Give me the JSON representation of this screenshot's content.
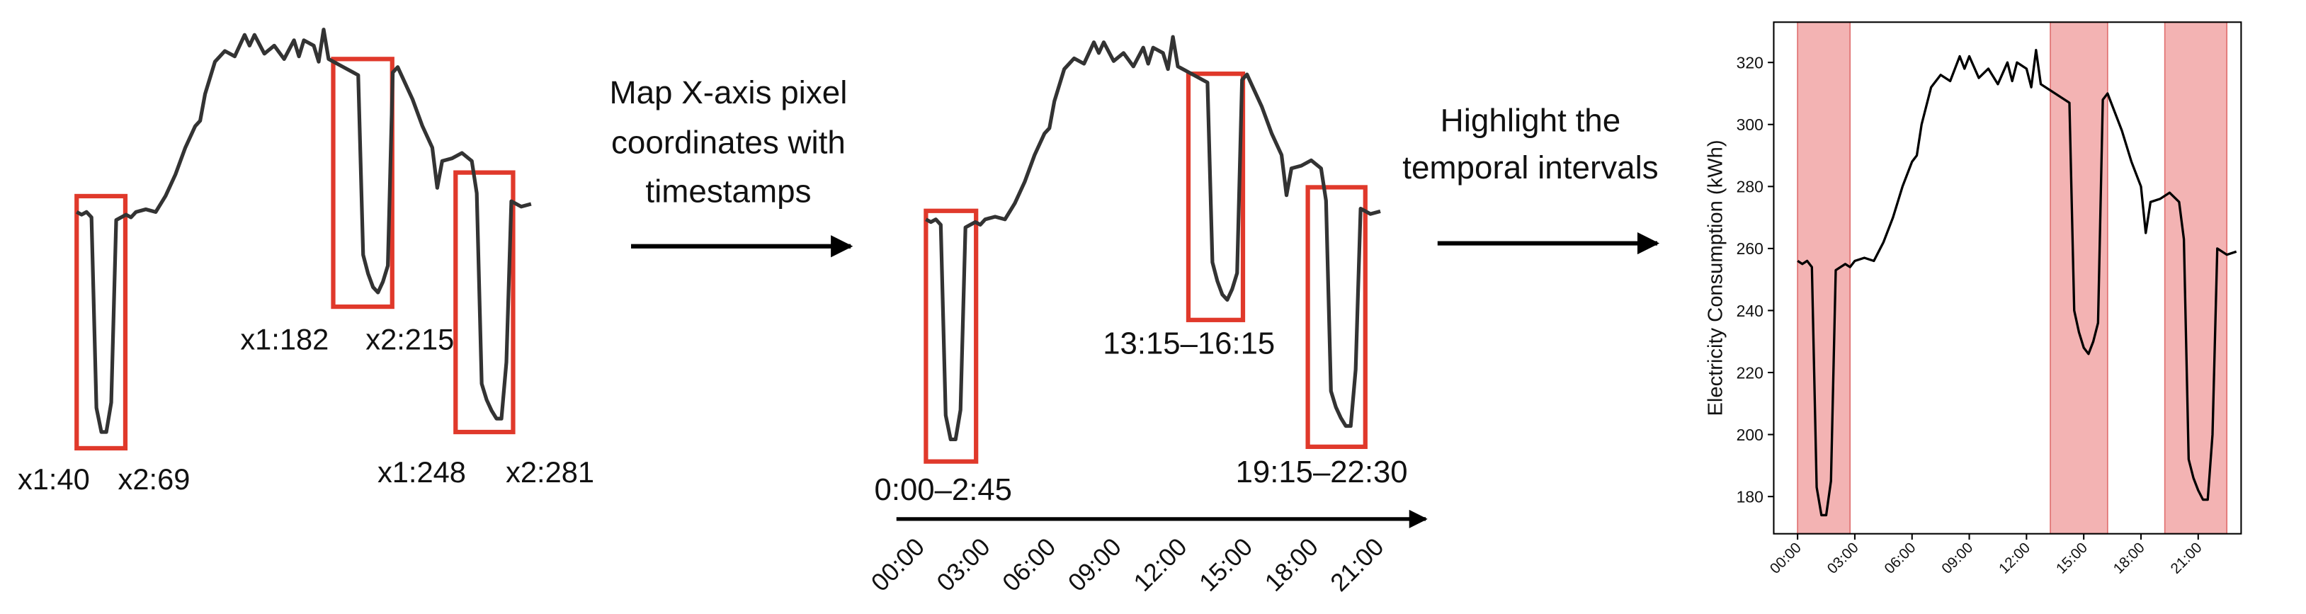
{
  "panel1": {
    "labels": [
      "x1:40",
      "x2:69",
      "x1:182",
      "x2:215",
      "x1:248",
      "x2:281"
    ]
  },
  "step1": {
    "lines": [
      "Map X-axis pixel",
      "coordinates with",
      "timestamps"
    ]
  },
  "panel2": {
    "labels": [
      "0:00–2:45",
      "13:15–16:15",
      "19:15–22:30"
    ],
    "ticks": [
      "00:00",
      "03:00",
      "06:00",
      "09:00",
      "12:00",
      "15:00",
      "18:00",
      "21:00"
    ]
  },
  "step2": {
    "lines": [
      "Highlight the",
      "temporal intervals"
    ]
  },
  "chart_data": {
    "type": "line",
    "y_label": "Electricity Consumption (kWh)",
    "x": [
      0,
      0.25,
      0.5,
      0.75,
      1,
      1.25,
      1.5,
      1.75,
      2,
      2.25,
      2.5,
      2.75,
      3,
      3.5,
      4,
      4.5,
      5,
      5.5,
      6,
      6.25,
      6.5,
      7,
      7.5,
      8,
      8.5,
      8.75,
      9,
      9.5,
      10,
      10.5,
      11,
      11.25,
      11.5,
      12,
      12.25,
      12.5,
      12.75,
      13,
      13.5,
      14,
      14.25,
      14.5,
      14.75,
      15,
      15.25,
      15.5,
      15.75,
      16,
      16.25,
      16.5,
      17,
      17.5,
      18,
      18.25,
      18.5,
      19,
      19.5,
      20,
      20.25,
      20.5,
      20.75,
      21,
      21.25,
      21.5,
      21.75,
      22,
      22.5,
      23
    ],
    "series": [
      {
        "color": "#000000",
        "values": [
          256,
          255,
          256,
          254,
          183,
          174,
          174,
          185,
          253,
          254,
          255,
          254,
          256,
          257,
          256,
          262,
          270,
          280,
          288,
          290,
          300,
          312,
          316,
          314,
          322,
          318,
          322,
          315,
          318,
          313,
          320,
          314,
          320,
          318,
          312,
          324,
          313,
          312,
          310,
          308,
          307,
          240,
          233,
          228,
          226,
          230,
          236,
          308,
          310,
          306,
          298,
          288,
          280,
          265,
          275,
          276,
          278,
          275,
          263,
          192,
          186,
          182,
          179,
          179,
          200,
          260,
          258,
          259
        ]
      }
    ],
    "highlights": [
      [
        0,
        2.75
      ],
      [
        13.25,
        16.25
      ],
      [
        19.25,
        22.5
      ]
    ],
    "highlight_color": "#f0a0a0",
    "xlim": [
      -1.25,
      23.25
    ],
    "ylim": [
      168,
      333
    ],
    "xticks": [
      {
        "value": 0,
        "label": "00:00"
      },
      {
        "value": 3,
        "label": "03:00"
      },
      {
        "value": 6,
        "label": "06:00"
      },
      {
        "value": 9,
        "label": "09:00"
      },
      {
        "value": 12,
        "label": "12:00"
      },
      {
        "value": 15,
        "label": "15:00"
      },
      {
        "value": 18,
        "label": "18:00"
      },
      {
        "value": 21,
        "label": "21:00"
      }
    ],
    "yticks": [
      180,
      200,
      220,
      240,
      260,
      280,
      300,
      320
    ]
  }
}
